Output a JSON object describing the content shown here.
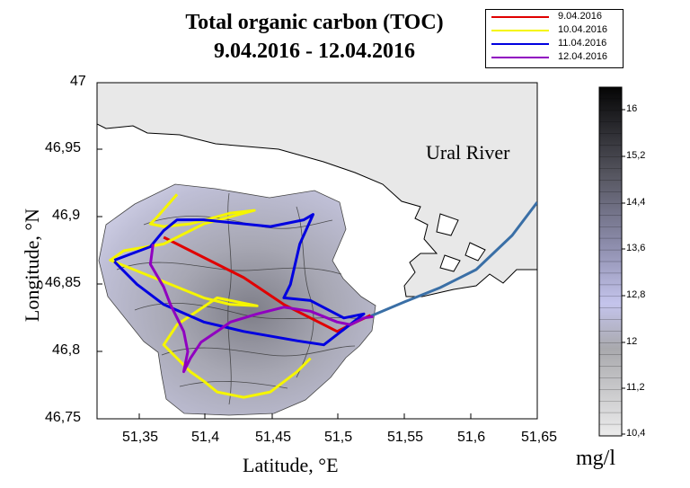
{
  "title": {
    "line1": "Total organic carbon (TOC)",
    "line2": "9.04.2016 - 12.04.2016"
  },
  "legend": [
    {
      "label": "9.04.2016",
      "color": "#e00000"
    },
    {
      "label": "10.04.2016",
      "color": "#f5f500"
    },
    {
      "label": "11.04.2016",
      "color": "#0000e0"
    },
    {
      "label": "12.04.2016",
      "color": "#9000c0"
    }
  ],
  "map": {
    "x_axis_label": "Latitude, °E",
    "y_axis_label": "Longitude, °N",
    "x_ticks": [
      "51,35",
      "51,4",
      "51,45",
      "51,5",
      "51,55",
      "51,6",
      "51,65"
    ],
    "y_ticks": [
      "47",
      "46,95",
      "46,9",
      "46,85",
      "46,8",
      "46,75"
    ],
    "river_label": "Ural River"
  },
  "colorbar": {
    "unit": "mg/l",
    "ticks": [
      "16",
      "15,2",
      "14,4",
      "13,6",
      "12,8",
      "12",
      "11,2",
      "10,4"
    ]
  },
  "chart_data": {
    "type": "contour_map",
    "xlim": [
      51.32,
      51.65
    ],
    "ylim": [
      46.75,
      47.0
    ],
    "color_range": [
      10.4,
      16.4
    ],
    "tracks": [
      {
        "date": "9.04.2016",
        "points": [
          [
            51.37,
            46.885
          ],
          [
            51.4,
            46.87
          ],
          [
            51.43,
            46.855
          ],
          [
            51.46,
            46.835
          ],
          [
            51.48,
            46.825
          ],
          [
            51.5,
            46.815
          ],
          [
            51.51,
            46.82
          ],
          [
            51.525,
            46.827
          ]
        ]
      },
      {
        "date": "10.04.2016",
        "points": [
          [
            51.38,
            46.917
          ],
          [
            51.365,
            46.9
          ],
          [
            51.36,
            46.895
          ],
          [
            51.37,
            46.893
          ],
          [
            51.39,
            46.895
          ],
          [
            51.42,
            46.903
          ],
          [
            51.438,
            46.905
          ],
          [
            51.4,
            46.895
          ],
          [
            51.37,
            46.88
          ],
          [
            51.34,
            46.875
          ],
          [
            51.33,
            46.868
          ],
          [
            51.375,
            46.85
          ],
          [
            51.4,
            46.84
          ],
          [
            51.42,
            46.835
          ],
          [
            51.44,
            46.834
          ],
          [
            51.41,
            46.84
          ],
          [
            51.38,
            46.82
          ],
          [
            51.37,
            46.805
          ],
          [
            51.38,
            46.795
          ],
          [
            51.39,
            46.785
          ],
          [
            51.4,
            46.778
          ],
          [
            51.41,
            46.77
          ],
          [
            51.43,
            46.766
          ],
          [
            51.45,
            46.77
          ],
          [
            51.47,
            46.785
          ],
          [
            51.48,
            46.795
          ]
        ]
      },
      {
        "date": "11.04.2016",
        "points": [
          [
            51.333,
            46.868
          ],
          [
            51.36,
            46.878
          ],
          [
            51.37,
            46.89
          ],
          [
            51.38,
            46.898
          ],
          [
            51.4,
            46.898
          ],
          [
            51.45,
            46.893
          ],
          [
            51.475,
            46.898
          ],
          [
            51.482,
            46.902
          ],
          [
            51.472,
            46.88
          ],
          [
            51.465,
            46.85
          ],
          [
            51.46,
            46.84
          ],
          [
            51.48,
            46.838
          ],
          [
            51.505,
            46.825
          ],
          [
            51.52,
            46.828
          ],
          [
            51.49,
            46.805
          ],
          [
            51.47,
            46.808
          ],
          [
            51.43,
            46.815
          ],
          [
            51.4,
            46.822
          ],
          [
            51.37,
            46.835
          ],
          [
            51.35,
            46.85
          ],
          [
            51.333,
            46.867
          ]
        ]
      },
      {
        "date": "12.04.2016",
        "points": [
          [
            51.362,
            46.88
          ],
          [
            51.36,
            46.865
          ],
          [
            51.37,
            46.848
          ],
          [
            51.375,
            46.835
          ],
          [
            51.385,
            46.815
          ],
          [
            51.388,
            46.8
          ],
          [
            51.385,
            46.785
          ],
          [
            51.39,
            46.795
          ],
          [
            51.398,
            46.807
          ],
          [
            51.41,
            46.815
          ],
          [
            51.42,
            46.822
          ],
          [
            51.44,
            46.828
          ],
          [
            51.46,
            46.833
          ],
          [
            51.48,
            46.83
          ],
          [
            51.5,
            46.822
          ],
          [
            51.51,
            46.82
          ],
          [
            51.52,
            46.825
          ],
          [
            51.527,
            46.826
          ]
        ]
      }
    ]
  }
}
